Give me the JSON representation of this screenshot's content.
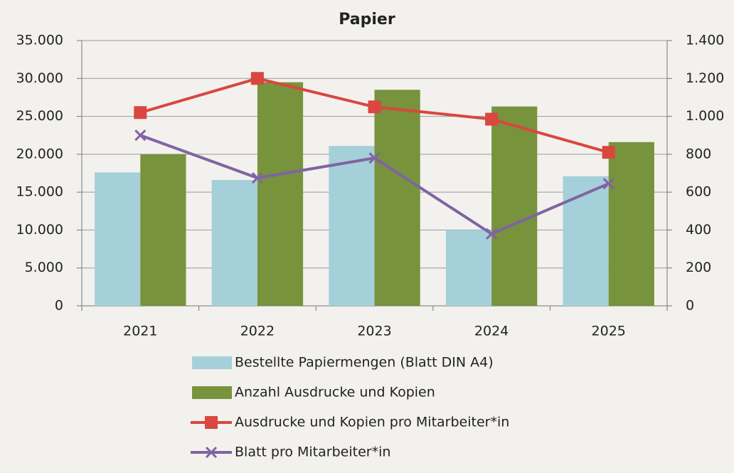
{
  "chart_data": {
    "type": "combo",
    "title": "Papier",
    "categories": [
      "2021",
      "2022",
      "2023",
      "2024",
      "2025"
    ],
    "series": [
      {
        "name": "Bestellte Papiermengen (Blatt DIN A4)",
        "type": "bar",
        "color": "#a5d0da",
        "values": [
          17600,
          16600,
          21100,
          10000,
          17100
        ]
      },
      {
        "name": "Anzahl Ausdrucke und Kopien",
        "type": "bar",
        "color": "#77933c",
        "values": [
          20000,
          29500,
          28500,
          26300,
          21600
        ]
      },
      {
        "name": "Ausdrucke und Kopien pro Mitarbeiter*in",
        "type": "line",
        "marker": "square",
        "axis": "y2",
        "color": "#d9473f",
        "values": [
          1020,
          1200,
          1050,
          985,
          810
        ]
      },
      {
        "name": "Blatt pro Mitarbeiter*in",
        "type": "line",
        "marker": "x",
        "axis": "y2",
        "color": "#8064a2",
        "values": [
          900,
          675,
          780,
          380,
          645
        ]
      }
    ],
    "ylim": [
      0,
      35000
    ],
    "yticks": [
      0,
      {
        "value": 5000,
        "label": "5.000"
      },
      {
        "value": 10000,
        "label": "10.000"
      },
      {
        "value": 15000,
        "label": "15.000"
      },
      {
        "value": 20000,
        "label": "20.000"
      },
      {
        "value": 25000,
        "label": "25.000"
      },
      {
        "value": 30000,
        "label": "30.000"
      },
      {
        "value": 35000,
        "label": "35.000"
      }
    ],
    "y2lim": [
      0,
      1400
    ],
    "y2ticks": [
      0,
      200,
      400,
      600,
      800,
      {
        "value": 1000,
        "label": "1.000"
      },
      {
        "value": 1200,
        "label": "1.200"
      },
      {
        "value": 1400,
        "label": "1.400"
      }
    ],
    "grid": true,
    "legend": "bottom"
  }
}
